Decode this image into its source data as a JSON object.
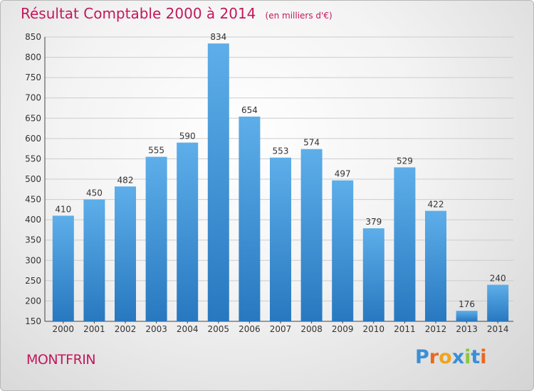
{
  "header": {
    "title": "Résultat Comptable 2000 à 2014",
    "unit": "(en milliers d'€)"
  },
  "commune": "MONTFRIN",
  "logo": {
    "text": "Proxiti",
    "letters": [
      {
        "ch": "P",
        "color": "#3a8fd6"
      },
      {
        "ch": "r",
        "color": "#e86a1e"
      },
      {
        "ch": "o",
        "color": "#f0a41c"
      },
      {
        "ch": "x",
        "color": "#3a8fd6"
      },
      {
        "ch": "i",
        "color": "#8dc63f"
      },
      {
        "ch": "t",
        "color": "#3a8fd6"
      },
      {
        "ch": "i",
        "color": "#e86a1e"
      }
    ]
  },
  "colors": {
    "bar_light": "#5daee9",
    "bar_dark": "#2878c0",
    "grid": "#cccccc",
    "title": "#c2185b"
  },
  "chart_data": {
    "type": "bar",
    "title": "Résultat Comptable 2000 à 2014",
    "subtitle": "(en milliers d'€)",
    "categories": [
      "2000",
      "2001",
      "2002",
      "2003",
      "2004",
      "2005",
      "2006",
      "2007",
      "2008",
      "2009",
      "2010",
      "2011",
      "2012",
      "2013",
      "2014"
    ],
    "values": [
      410,
      450,
      482,
      555,
      590,
      834,
      654,
      553,
      574,
      497,
      379,
      529,
      422,
      176,
      240
    ],
    "ylim": [
      150,
      850
    ],
    "yticks": [
      150,
      200,
      250,
      300,
      350,
      400,
      450,
      500,
      550,
      600,
      650,
      700,
      750,
      800,
      850
    ],
    "grid": true,
    "data_labels": true
  }
}
